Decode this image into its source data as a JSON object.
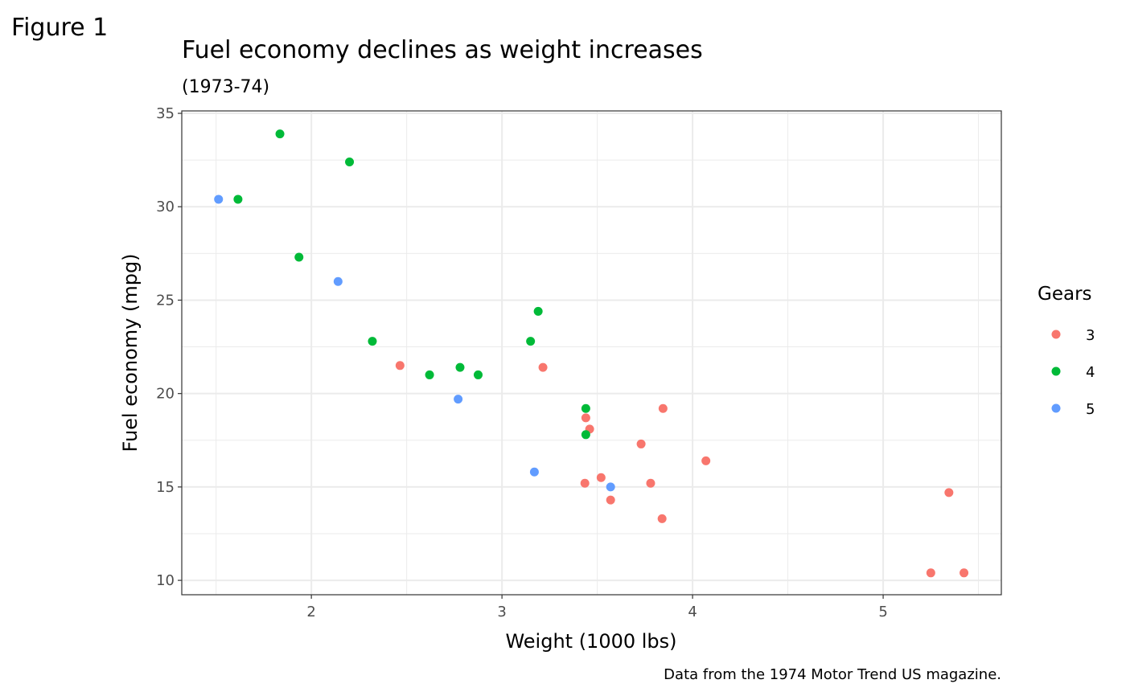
{
  "figure_label": "Figure 1",
  "chart_data": {
    "type": "scatter",
    "title": "Fuel economy declines as weight increases",
    "subtitle": "(1973-74)",
    "xlabel": "Weight (1000 lbs)",
    "ylabel": "Fuel economy (mpg)",
    "caption": "Data from the 1974 Motor Trend US magazine.",
    "xlim": [
      1.32,
      5.62
    ],
    "ylim": [
      9.23,
      35.13
    ],
    "xticks": [
      2,
      3,
      4,
      5
    ],
    "yticks": [
      10,
      15,
      20,
      25,
      30,
      35
    ],
    "grid": true,
    "legend": {
      "title": "Gears",
      "placement": "right",
      "entries": [
        {
          "label": "3",
          "color": "#F8766D"
        },
        {
          "label": "4",
          "color": "#00BA38"
        },
        {
          "label": "5",
          "color": "#619CFF"
        }
      ]
    },
    "points": [
      {
        "x": 2.62,
        "y": 21.0,
        "gear": "4"
      },
      {
        "x": 2.875,
        "y": 21.0,
        "gear": "4"
      },
      {
        "x": 2.32,
        "y": 22.8,
        "gear": "4"
      },
      {
        "x": 3.215,
        "y": 21.4,
        "gear": "3"
      },
      {
        "x": 3.44,
        "y": 18.7,
        "gear": "3"
      },
      {
        "x": 3.46,
        "y": 18.1,
        "gear": "3"
      },
      {
        "x": 3.57,
        "y": 14.3,
        "gear": "3"
      },
      {
        "x": 3.19,
        "y": 24.4,
        "gear": "4"
      },
      {
        "x": 3.15,
        "y": 22.8,
        "gear": "4"
      },
      {
        "x": 3.44,
        "y": 19.2,
        "gear": "4"
      },
      {
        "x": 3.44,
        "y": 17.8,
        "gear": "4"
      },
      {
        "x": 4.07,
        "y": 16.4,
        "gear": "3"
      },
      {
        "x": 3.73,
        "y": 17.3,
        "gear": "3"
      },
      {
        "x": 3.78,
        "y": 15.2,
        "gear": "3"
      },
      {
        "x": 5.25,
        "y": 10.4,
        "gear": "3"
      },
      {
        "x": 5.424,
        "y": 10.4,
        "gear": "3"
      },
      {
        "x": 5.345,
        "y": 14.7,
        "gear": "3"
      },
      {
        "x": 2.2,
        "y": 32.4,
        "gear": "4"
      },
      {
        "x": 1.615,
        "y": 30.4,
        "gear": "4"
      },
      {
        "x": 1.835,
        "y": 33.9,
        "gear": "4"
      },
      {
        "x": 2.465,
        "y": 21.5,
        "gear": "3"
      },
      {
        "x": 3.52,
        "y": 15.5,
        "gear": "3"
      },
      {
        "x": 3.435,
        "y": 15.2,
        "gear": "3"
      },
      {
        "x": 3.84,
        "y": 13.3,
        "gear": "3"
      },
      {
        "x": 3.845,
        "y": 19.2,
        "gear": "3"
      },
      {
        "x": 1.935,
        "y": 27.3,
        "gear": "4"
      },
      {
        "x": 2.14,
        "y": 26.0,
        "gear": "5"
      },
      {
        "x": 1.513,
        "y": 30.4,
        "gear": "5"
      },
      {
        "x": 3.17,
        "y": 15.8,
        "gear": "5"
      },
      {
        "x": 2.77,
        "y": 19.7,
        "gear": "5"
      },
      {
        "x": 3.57,
        "y": 15.0,
        "gear": "5"
      },
      {
        "x": 2.78,
        "y": 21.4,
        "gear": "4"
      }
    ]
  }
}
